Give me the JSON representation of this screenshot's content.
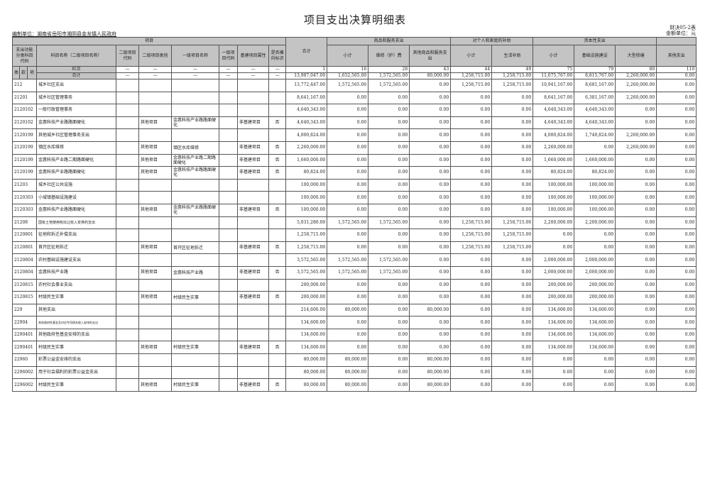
{
  "title": "项目支出决算明细表",
  "form_no": "财决05-2表",
  "unit": "金额单位：元",
  "org": "编制单位：湖南省岳阳市湘阴县金龙镇人民政府",
  "header": {
    "project_group": "项目",
    "total": "合计",
    "goods_group": "商品和服务支出",
    "subsidy_group": "对个人和家庭的补助",
    "capital_group": "资本性支出",
    "code": "支出功能分类科目代码",
    "name": "科目名称（二级项目名称）",
    "proj_code": "二级项目代码",
    "proj_cat": "二级项目类别",
    "l1_name": "一级项目名称",
    "l1_code": "一级项目代码",
    "attr": "基建项目属性",
    "flag": "是否横向标识",
    "cols": [
      "小计",
      "维修（护）费",
      "其他商品和服务支出",
      "小计",
      "生活补助",
      "小计",
      "基础设施建设",
      "大型修缮",
      "其他支出"
    ],
    "lei": "类",
    "kuan": "款",
    "xiang": "项",
    "lanci": "栏次",
    "lanci_dash": "—",
    "lanci_nums": [
      "1",
      "16",
      "28",
      "43",
      "44",
      "49",
      "75",
      "79",
      "80",
      "110"
    ],
    "total_row": "合计",
    "total_values": [
      "13,987,047.00",
      "1,652,565.00",
      "1,572,565.00",
      "80,000.00",
      "1,258,715.00",
      "1,258,715.00",
      "11,075,767.00",
      "8,815,767.00",
      "2,260,000.00",
      "0.00"
    ]
  },
  "rows": [
    [
      "212",
      "城乡社区支出",
      "",
      "",
      "",
      "",
      "",
      "",
      "13,772,447.00",
      "1,572,565.00",
      "1,572,565.00",
      "0.00",
      "1,258,715.00",
      "1,258,715.00",
      "10,941,167.00",
      "8,681,167.00",
      "2,260,000.00",
      "0.00"
    ],
    [
      "21201",
      "城乡社区管理事务",
      "",
      "",
      "",
      "",
      "",
      "",
      "8,641,167.00",
      "0.00",
      "0.00",
      "0.00",
      "0.00",
      "0.00",
      "8,641,167.00",
      "6,381,167.00",
      "2,260,000.00",
      "0.00"
    ],
    [
      "2120102",
      "一般行政管理事务",
      "",
      "",
      "",
      "",
      "",
      "",
      "4,640,343.00",
      "0.00",
      "0.00",
      "0.00",
      "0.00",
      "0.00",
      "4,640,343.00",
      "4,640,343.00",
      "0.00",
      "0.00"
    ],
    [
      "2120102",
      "金惠科技产业路路面硬化",
      "",
      "其他项目",
      "金惠科技产业路路面硬化",
      "",
      "非基建项目",
      "否",
      "4,640,343.00",
      "0.00",
      "0.00",
      "0.00",
      "0.00",
      "0.00",
      "4,640,343.00",
      "4,640,343.00",
      "0.00",
      "0.00"
    ],
    [
      "2120199",
      "其他城乡社区管理事务支出",
      "",
      "",
      "",
      "",
      "",
      "",
      "4,000,824.00",
      "0.00",
      "0.00",
      "0.00",
      "0.00",
      "0.00",
      "4,000,824.00",
      "1,740,824.00",
      "2,260,000.00",
      "0.00"
    ],
    [
      "2120199",
      "镇区水库维修",
      "",
      "其他项目",
      "镇区水库维修",
      "",
      "非基建项目",
      "否",
      "2,260,000.00",
      "0.00",
      "0.00",
      "0.00",
      "0.00",
      "0.00",
      "2,260,000.00",
      "0.00",
      "2,260,000.00",
      "0.00"
    ],
    [
      "2120199",
      "金惠科技产业路二期路面硬化",
      "",
      "其他项目",
      "金惠科技产业路二期路面硬化",
      "",
      "非基建项目",
      "否",
      "1,660,000.00",
      "0.00",
      "0.00",
      "0.00",
      "0.00",
      "0.00",
      "1,660,000.00",
      "1,660,000.00",
      "0.00",
      "0.00"
    ],
    [
      "2120199",
      "金惠科技产业路路面硬化",
      "",
      "其他项目",
      "金惠科技产业路路面硬化",
      "",
      "非基建项目",
      "否",
      "80,824.00",
      "0.00",
      "0.00",
      "0.00",
      "0.00",
      "0.00",
      "80,824.00",
      "80,824.00",
      "0.00",
      "0.00"
    ],
    [
      "21203",
      "城乡社区公共设施",
      "",
      "",
      "",
      "",
      "",
      "",
      "100,000.00",
      "0.00",
      "0.00",
      "0.00",
      "0.00",
      "0.00",
      "100,000.00",
      "100,000.00",
      "0.00",
      "0.00"
    ],
    [
      "2120303",
      "小城镇基础设施建设",
      "",
      "",
      "",
      "",
      "",
      "",
      "100,000.00",
      "0.00",
      "0.00",
      "0.00",
      "0.00",
      "0.00",
      "100,000.00",
      "100,000.00",
      "0.00",
      "0.00"
    ],
    [
      "2120303",
      "金惠科技产业路路面硬化",
      "",
      "其他项目",
      "金惠科技产业路路面硬化",
      "",
      "非基建项目",
      "否",
      "100,000.00",
      "0.00",
      "0.00",
      "0.00",
      "0.00",
      "0.00",
      "100,000.00",
      "100,000.00",
      "0.00",
      "0.00"
    ],
    [
      "21208",
      "国有土地使用权出让收入安排的支出",
      "",
      "",
      "",
      "",
      "",
      "",
      "5,031,280.00",
      "1,572,565.00",
      "1,572,565.00",
      "0.00",
      "1,258,715.00",
      "1,258,715.00",
      "2,200,000.00",
      "2,200,000.00",
      "0.00",
      "0.00"
    ],
    [
      "2120801",
      "征地和拆迁补偿支出",
      "",
      "",
      "",
      "",
      "",
      "",
      "1,258,715.00",
      "0.00",
      "0.00",
      "0.00",
      "1,258,715.00",
      "1,258,715.00",
      "0.00",
      "0.00",
      "0.00",
      "0.00"
    ],
    [
      "2120801",
      "首开区征地拆迁",
      "",
      "其他项目",
      "首开区征地拆迁",
      "",
      "非基建项目",
      "否",
      "1,258,715.00",
      "0.00",
      "0.00",
      "0.00",
      "1,258,715.00",
      "1,258,715.00",
      "0.00",
      "0.00",
      "0.00",
      "0.00"
    ],
    [
      "2120804",
      "农村基础设施建设支出",
      "",
      "",
      "",
      "",
      "",
      "",
      "3,572,565.00",
      "1,572,565.00",
      "1,572,565.00",
      "0.00",
      "0.00",
      "0.00",
      "2,000,000.00",
      "2,000,000.00",
      "0.00",
      "0.00"
    ],
    [
      "2120804",
      "金惠科技产业路",
      "",
      "其他项目",
      "金惠科技产业路",
      "",
      "非基建项目",
      "否",
      "3,572,565.00",
      "1,572,565.00",
      "1,572,565.00",
      "0.00",
      "0.00",
      "0.00",
      "2,000,000.00",
      "2,000,000.00",
      "0.00",
      "0.00"
    ],
    [
      "2120815",
      "农村社会事业支出",
      "",
      "",
      "",
      "",
      "",
      "",
      "200,000.00",
      "0.00",
      "0.00",
      "0.00",
      "0.00",
      "0.00",
      "200,000.00",
      "200,000.00",
      "0.00",
      "0.00"
    ],
    [
      "2120815",
      "村级民生实事",
      "",
      "其他项目",
      "村级民生实事",
      "",
      "非基建项目",
      "否",
      "200,000.00",
      "0.00",
      "0.00",
      "0.00",
      "0.00",
      "0.00",
      "200,000.00",
      "200,000.00",
      "0.00",
      "0.00"
    ],
    [
      "229",
      "其他支出",
      "",
      "",
      "",
      "",
      "",
      "",
      "214,600.00",
      "80,000.00",
      "0.00",
      "80,000.00",
      "0.00",
      "0.00",
      "134,600.00",
      "134,600.00",
      "0.00",
      "0.00"
    ],
    [
      "22904",
      "其他政府性基金及对应专项债务收入安排的支出",
      "",
      "",
      "",
      "",
      "",
      "",
      "134,600.00",
      "0.00",
      "0.00",
      "0.00",
      "0.00",
      "0.00",
      "134,600.00",
      "134,600.00",
      "0.00",
      "0.00"
    ],
    [
      "2290401",
      "其他政府性基金安排的支出",
      "",
      "",
      "",
      "",
      "",
      "",
      "134,600.00",
      "0.00",
      "0.00",
      "0.00",
      "0.00",
      "0.00",
      "134,600.00",
      "134,600.00",
      "0.00",
      "0.00"
    ],
    [
      "2290401",
      "村级民生实事",
      "",
      "其他项目",
      "村级民生实事",
      "",
      "非基建项目",
      "否",
      "134,600.00",
      "0.00",
      "0.00",
      "0.00",
      "0.00",
      "0.00",
      "134,600.00",
      "134,600.00",
      "0.00",
      "0.00"
    ],
    [
      "22960",
      "彩票公益金安排的支出",
      "",
      "",
      "",
      "",
      "",
      "",
      "80,000.00",
      "80,000.00",
      "0.00",
      "80,000.00",
      "0.00",
      "0.00",
      "0.00",
      "0.00",
      "0.00",
      "0.00"
    ],
    [
      "2296002",
      "用于社会福利的彩票公益金支出",
      "",
      "",
      "",
      "",
      "",
      "",
      "80,000.00",
      "80,000.00",
      "0.00",
      "80,000.00",
      "0.00",
      "0.00",
      "0.00",
      "0.00",
      "0.00",
      "0.00"
    ],
    [
      "2296002",
      "村级民生实事",
      "",
      "其他项目",
      "村级民生实事",
      "",
      "非基建项目",
      "否",
      "80,000.00",
      "80,000.00",
      "0.00",
      "80,000.00",
      "0.00",
      "0.00",
      "0.00",
      "0.00",
      "0.00",
      "0.00"
    ]
  ]
}
